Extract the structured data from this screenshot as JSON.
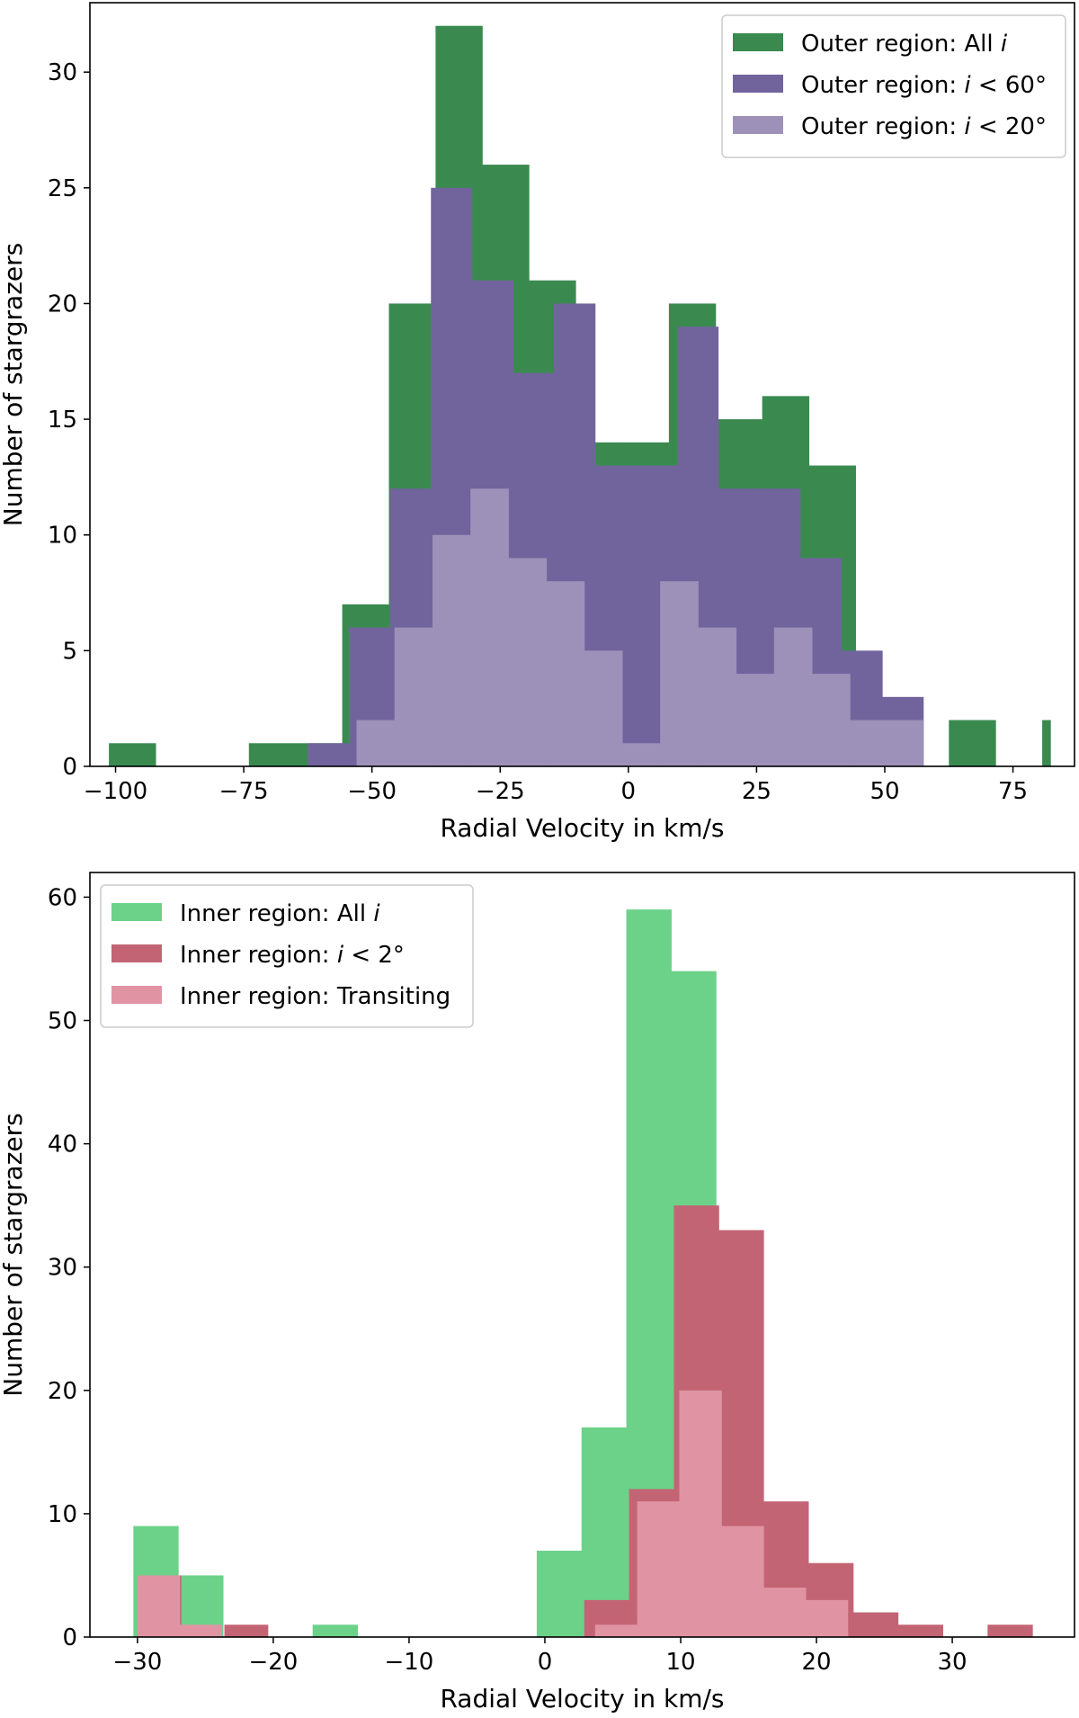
{
  "chart_data": [
    {
      "type": "bar",
      "subtype": "overlaid-histogram",
      "title": "",
      "xlabel": "Radial Velocity in km/s",
      "ylabel": "Number of stargrazers",
      "xlim": [
        -105,
        87
      ],
      "ylim": [
        0,
        33
      ],
      "xticks": [
        -100,
        -75,
        -50,
        -25,
        0,
        25,
        50,
        75
      ],
      "yticks": [
        0,
        5,
        10,
        15,
        20,
        25,
        30
      ],
      "grid": false,
      "legend_position": "top-right",
      "series": [
        {
          "name": "Outer region: All i",
          "legend_parts": [
            "Outer region: All ",
            "i",
            ""
          ],
          "color": "#3a8a50",
          "edges": [
            -101.3,
            -92.2,
            -83.1,
            -74.0,
            -64.9,
            -55.8,
            -46.7,
            -37.6,
            -28.5,
            -19.4,
            -10.3,
            -1.2,
            7.9,
            17.0,
            26.1,
            35.2,
            44.3,
            53.4,
            62.5,
            71.6,
            80.7,
            82.3
          ],
          "values": [
            1,
            0,
            0,
            1,
            1,
            7,
            20,
            32,
            26,
            21,
            14,
            14,
            20,
            15,
            16,
            13,
            2,
            0,
            2,
            0,
            2
          ]
        },
        {
          "name": "Outer region: i < 60°",
          "legend_parts": [
            "Outer region: ",
            "i",
            " < 60°"
          ],
          "color": "#71649d",
          "edges": [
            -62.5,
            -54.5,
            -46.5,
            -38.5,
            -30.5,
            -22.5,
            -14.5,
            -6.5,
            1.5,
            9.5,
            17.5,
            25.5,
            33.5,
            41.5,
            49.5,
            57.5
          ],
          "values": [
            1,
            6,
            12,
            25,
            21,
            17,
            20,
            13,
            13,
            19,
            12,
            12,
            9,
            5,
            3
          ]
        },
        {
          "name": "Outer region: i < 20°",
          "legend_parts": [
            "Outer region: ",
            "i",
            " < 20°"
          ],
          "color": "#9d91b9",
          "edges": [
            -53.0,
            -45.6,
            -38.2,
            -30.8,
            -23.4,
            -16.0,
            -8.6,
            -1.2,
            6.2,
            13.6,
            21.0,
            28.4,
            35.8,
            43.2,
            50.6,
            57.5
          ],
          "values": [
            2,
            6,
            10,
            12,
            9,
            8,
            5,
            1,
            8,
            6,
            4,
            6,
            4,
            2,
            2
          ]
        }
      ]
    },
    {
      "type": "bar",
      "subtype": "overlaid-histogram",
      "title": "",
      "xlabel": "Radial Velocity in km/s",
      "ylabel": "Number of stargrazers",
      "xlim": [
        -33.5,
        39
      ],
      "ylim": [
        0,
        62
      ],
      "xticks": [
        -30,
        -20,
        -10,
        0,
        10,
        20,
        30
      ],
      "yticks": [
        0,
        10,
        20,
        30,
        40,
        50,
        60
      ],
      "grid": false,
      "legend_position": "top-left",
      "series": [
        {
          "name": "Inner region: All i",
          "legend_parts": [
            "Inner region: All ",
            "i",
            ""
          ],
          "color": "#6cd289",
          "edges": [
            -30.3,
            -27.0,
            -23.7,
            -20.4,
            -17.1,
            -13.8,
            -10.5,
            -7.2,
            -3.9,
            -0.6,
            2.7,
            6.0,
            9.3,
            12.6,
            15.9,
            19.2,
            22.5,
            25.8,
            29.1
          ],
          "values": [
            9,
            5,
            0,
            0,
            1,
            0,
            0,
            0,
            0,
            7,
            17,
            59,
            54,
            21,
            9,
            5,
            2,
            0
          ]
        },
        {
          "name": "Inner region: i < 2°",
          "legend_parts": [
            "Inner region: ",
            "i",
            " < 2°"
          ],
          "color": "#c36475",
          "edges": [
            -30.0,
            -26.8,
            -23.6,
            -20.4,
            -17.2,
            -14.0,
            -10.8,
            -7.6,
            -4.4,
            -1.2,
            2.9,
            6.2,
            9.5,
            12.8,
            16.1,
            19.4,
            22.7,
            26.0,
            29.3,
            32.6,
            35.9
          ],
          "values": [
            5,
            0,
            1,
            0,
            0,
            0,
            0,
            0,
            0,
            0,
            3,
            12,
            35,
            33,
            11,
            6,
            2,
            1,
            0,
            1
          ]
        },
        {
          "name": "Inner region: Transiting",
          "legend_parts": [
            "Inner region: Transiting",
            "",
            ""
          ],
          "color": "#e094a3",
          "edges": [
            -30.0,
            -26.9,
            -23.8,
            3.7,
            6.8,
            9.9,
            13.0,
            16.1,
            19.2,
            22.3
          ],
          "values": [
            5,
            1,
            0,
            1,
            11,
            20,
            9,
            4,
            3
          ]
        }
      ]
    }
  ]
}
